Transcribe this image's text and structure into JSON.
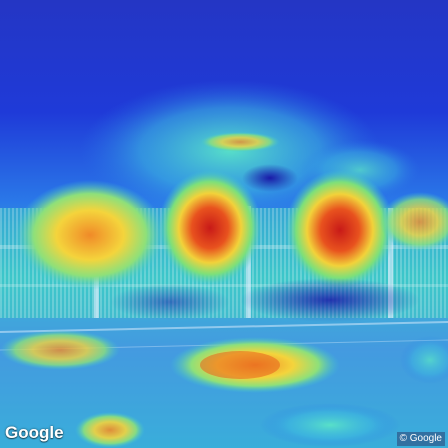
{
  "image": {
    "overlay_brand": "Google",
    "copyright": "© Google"
  },
  "colors": {
    "heatmap_low": "#1e2fd0",
    "heatmap_mid": "#3cd2c8",
    "heatmap_warm": "#f2d23a",
    "heatmap_high": "#d0231c"
  }
}
